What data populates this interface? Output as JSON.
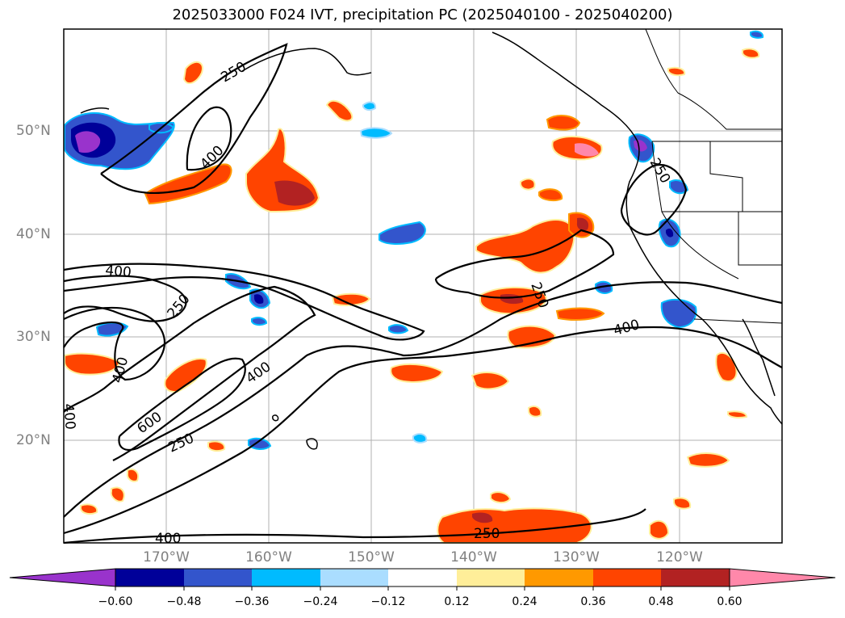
{
  "title": "2025033000 F024 IVT, precipitation PC (2025040100 - 2025040200)",
  "map": {
    "lat_labels": [
      "50°N",
      "40°N",
      "30°N",
      "20°N"
    ],
    "lon_labels": [
      "170°W",
      "160°W",
      "150°W",
      "140°W",
      "130°W",
      "120°W"
    ],
    "contour_labels": [
      "250",
      "400",
      "400",
      "250",
      "400",
      "400",
      "600",
      "250",
      "400",
      "250",
      "250",
      "400",
      "250",
      "400"
    ]
  },
  "colorbar": {
    "ticks": [
      "−0.60",
      "−0.48",
      "−0.36",
      "−0.24",
      "−0.12",
      "0.12",
      "0.24",
      "0.36",
      "0.48",
      "0.60"
    ],
    "colors": [
      "#9933cc",
      "#000099",
      "#3355cc",
      "#00bbff",
      "#aaddff",
      "#ffffff",
      "#ffee99",
      "#ff9900",
      "#ff4400",
      "#b22222",
      "#ff88aa"
    ]
  }
}
